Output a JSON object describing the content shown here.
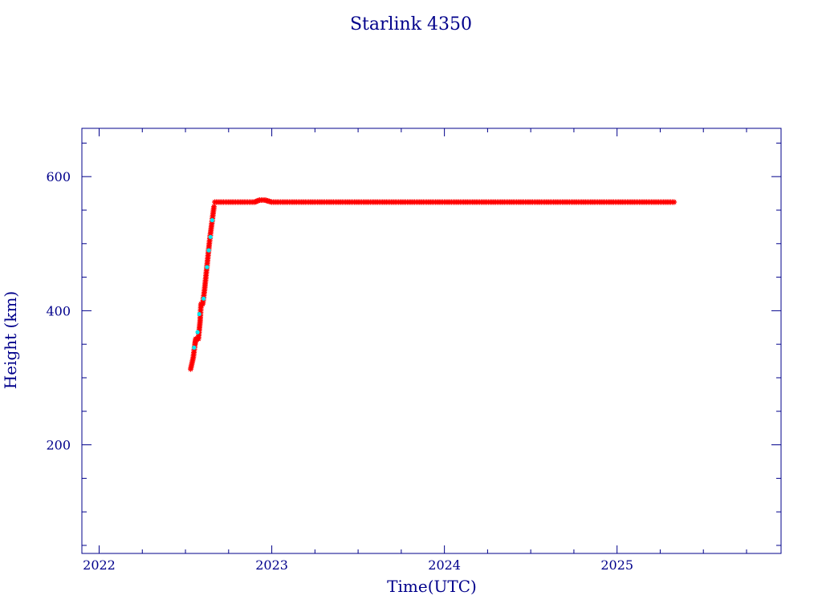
{
  "chart_data": {
    "type": "scatter",
    "title": "Starlink 4350",
    "xlabel": "Time(UTC)",
    "ylabel": "Height (km)",
    "xlim": [
      2021.9,
      2025.95
    ],
    "ylim": [
      38,
      672
    ],
    "x_major_ticks": [
      2022,
      2023,
      2024,
      2025
    ],
    "x_tick_labels": [
      "2022",
      "2023",
      "2024",
      "2025"
    ],
    "y_major_ticks": [
      200,
      400,
      600
    ],
    "y_tick_labels": [
      "200",
      "400",
      "600"
    ],
    "x_minor_step": 0.25,
    "y_minor_step": 50,
    "grid": false,
    "colors": {
      "axis": "#00008b",
      "primary_marker": "#ff0000",
      "secondary_marker": "#00e5ee",
      "background": "#ffffff"
    },
    "series": [
      {
        "marker": "asterisk",
        "color": "#ff0000",
        "segments": [
          {
            "x": [
              2022.53,
              2022.545,
              2022.555,
              2022.56,
              2022.575,
              2022.585,
              2022.59,
              2022.6,
              2022.61,
              2022.62,
              2022.63,
              2022.64,
              2022.65,
              2022.66,
              2022.665
            ],
            "y": [
              313,
              330,
              350,
              358,
              358,
              385,
              410,
              410,
              430,
              455,
              480,
              505,
              525,
              545,
              555
            ]
          },
          {
            "x": [
              2022.67,
              2022.8,
              2022.9,
              2022.93,
              2022.96,
              2023.0,
              2023.5,
              2024.0,
              2024.5,
              2025.0,
              2025.33
            ],
            "y": [
              562,
              562,
              562,
              565,
              565,
              562,
              562,
              562,
              562,
              562,
              562
            ]
          }
        ]
      },
      {
        "marker": "dot",
        "color": "#00e5ee",
        "points": {
          "x": [
            2022.55,
            2022.57,
            2022.58,
            2022.605,
            2022.625,
            2022.635,
            2022.645,
            2022.655
          ],
          "y": [
            345,
            368,
            395,
            418,
            465,
            490,
            510,
            535
          ]
        }
      }
    ]
  }
}
